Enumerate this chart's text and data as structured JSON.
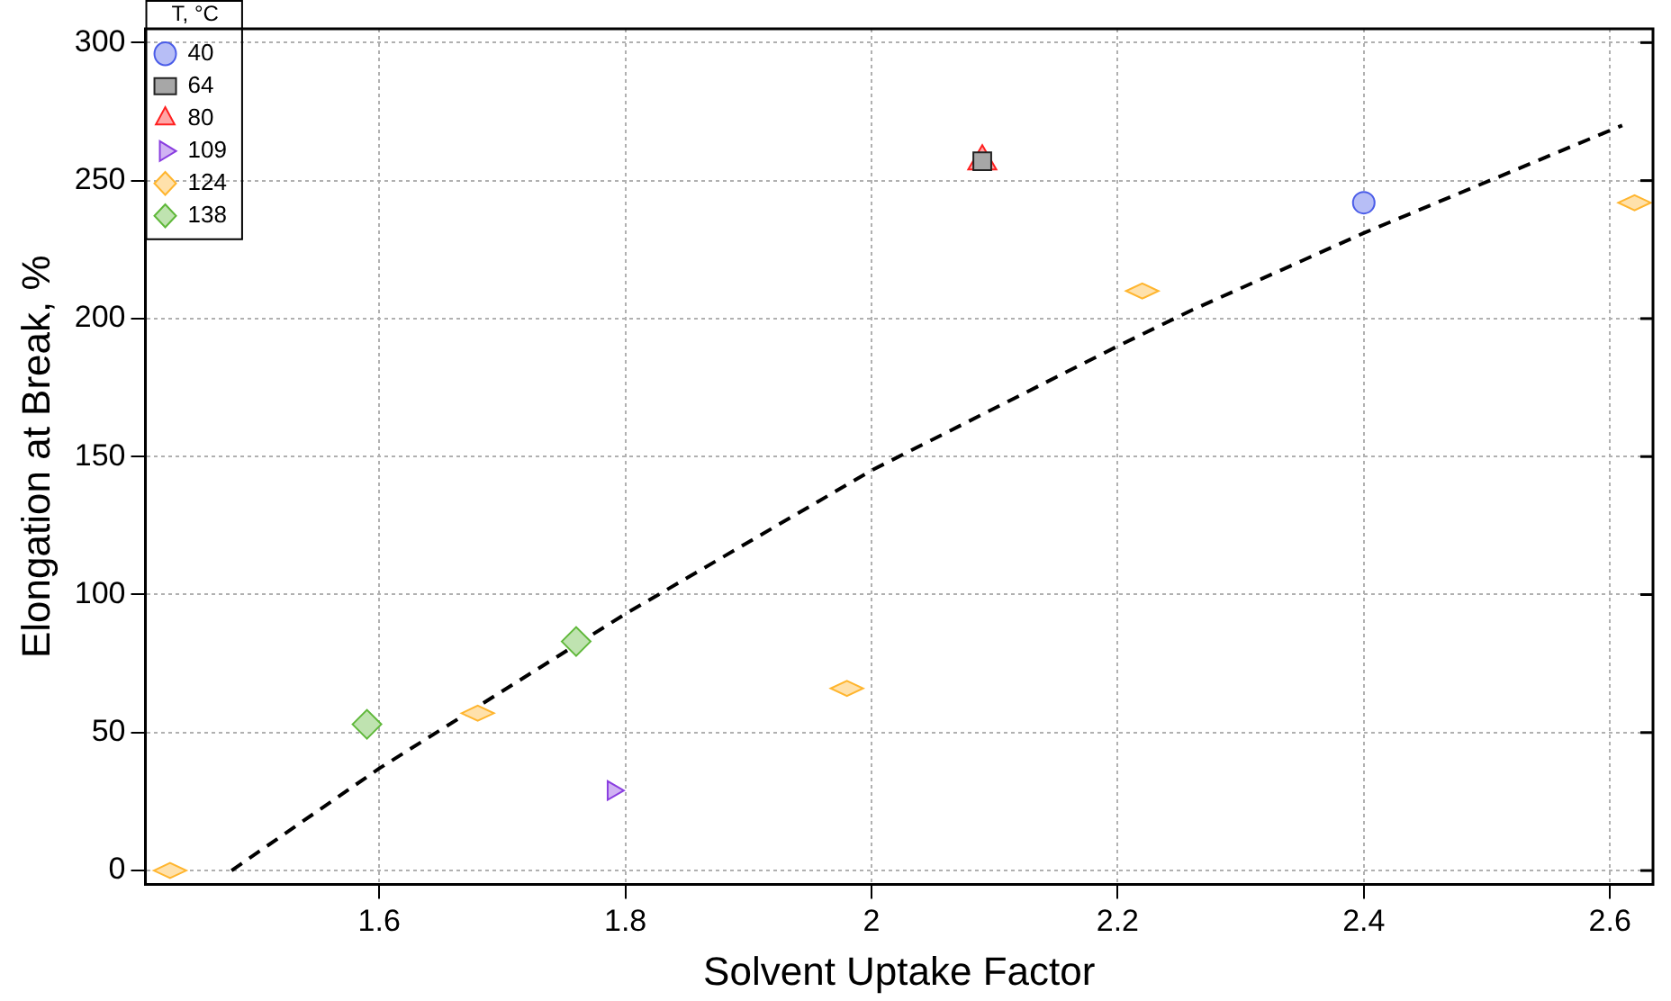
{
  "chart_data": {
    "type": "scatter",
    "xlabel": "Solvent Uptake Factor",
    "ylabel": "Elongation at Break, %",
    "legend_title": "T, °C",
    "legend": "top left",
    "grid": true,
    "xlim": [
      1.41,
      2.635
    ],
    "xticks": [
      1.6,
      1.8,
      2.0,
      2.2,
      2.4,
      2.6
    ],
    "ylim": [
      -5,
      305
    ],
    "yticks": [
      0,
      50,
      100,
      150,
      200,
      250,
      300
    ],
    "series": [
      {
        "name": "40",
        "color": "#4a5ce8",
        "marker": "circle",
        "x": [
          2.4
        ],
        "values": [
          242
        ]
      },
      {
        "name": "64",
        "color": "#222222",
        "marker": "square",
        "x": [
          2.09
        ],
        "values": [
          257
        ]
      },
      {
        "name": "80",
        "color": "#ff2020",
        "marker": "triangle",
        "x": [
          2.09
        ],
        "values": [
          257
        ]
      },
      {
        "name": "109",
        "color": "#8a3ee0",
        "marker": "triangle-right",
        "x": [
          1.79
        ],
        "values": [
          29
        ]
      },
      {
        "name": "124",
        "color": "#ffb52e",
        "marker": "diamond-wide",
        "x": [
          1.43,
          1.68,
          1.98,
          2.22,
          2.62
        ],
        "values": [
          0,
          57,
          66,
          210,
          242
        ]
      },
      {
        "name": "138",
        "color": "#5fb83a",
        "marker": "diamond",
        "x": [
          1.59,
          1.76
        ],
        "values": [
          53,
          83
        ]
      },
      {
        "type": "line",
        "color": "#000000",
        "marker": "none",
        "line_style": "dashed",
        "x": [
          1.48,
          1.6,
          1.8,
          2.0,
          2.2,
          2.26,
          2.4,
          2.61
        ],
        "values": [
          0,
          37,
          93,
          145,
          190,
          203,
          231,
          270
        ]
      }
    ]
  }
}
